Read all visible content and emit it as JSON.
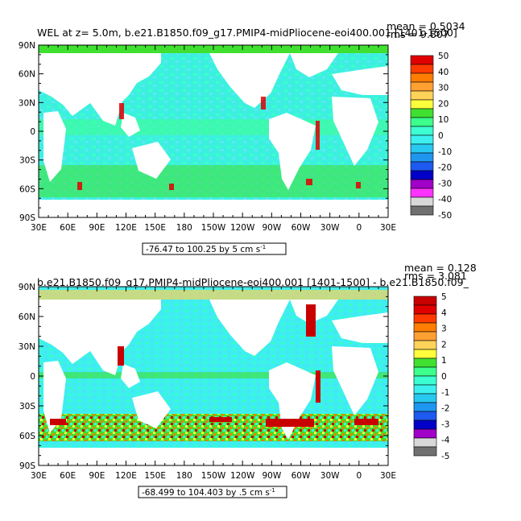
{
  "chart_data": [
    {
      "type": "heatmap",
      "title": "WEL at z=    5.0m, b.e21.B1850.f09_g17.PMIP4-midPliocene-eoi400.001 [1401-1500]",
      "stats": [
        "mean = 0.5034",
        "rms = 9.807"
      ],
      "x_ticks": [
        "30E",
        "60E",
        "90E",
        "120E",
        "150E",
        "180",
        "150W",
        "120W",
        "90W",
        "60W",
        "30W",
        "0",
        "30E"
      ],
      "y_ticks": [
        "90N",
        "60N",
        "30N",
        "0",
        "30S",
        "60S",
        "90S"
      ],
      "contour_info": [
        "-76.47 to 100.25 by 5 cm s",
        "-1"
      ],
      "colorbar_levels": [
        "50",
        "40",
        "30",
        "20",
        "10",
        "0",
        "-10",
        "-20",
        "-30",
        "-40",
        "-50"
      ],
      "colorbar_colors": [
        "#e10000",
        "#ff3a00",
        "#ff7d00",
        "#ffa032",
        "#ffd25a",
        "#fdfd3c",
        "#40e030",
        "#3cff8c",
        "#3cffd2",
        "#3cf0f0",
        "#28c8f0",
        "#1e96f0",
        "#1e5af0",
        "#0000c8",
        "#a000c8",
        "#ff32ff",
        "#d8d8d8",
        "#707070"
      ],
      "xlim": [
        "30E",
        "30E"
      ],
      "ylim": [
        "90S",
        "90N"
      ]
    },
    {
      "type": "heatmap",
      "title": "b.e21.B1850.f09_g17.PMIP4-midPliocene-eoi400.001 [1401-1500] - b.e21.B1850.f09_",
      "stats": [
        "mean = 0.128",
        "rms = 3.081"
      ],
      "x_ticks": [
        "30E",
        "60E",
        "90E",
        "120E",
        "150E",
        "180",
        "150W",
        "120W",
        "90W",
        "60W",
        "30W",
        "0",
        "30E"
      ],
      "y_ticks": [
        "90N",
        "60N",
        "30N",
        "0",
        "30S",
        "60S",
        "90S"
      ],
      "contour_info": [
        "-68.499 to 104.403 by .5 cm s",
        "-1"
      ],
      "colorbar_levels": [
        "5",
        "4",
        "3",
        "2",
        "1",
        "0",
        "-1",
        "-2",
        "-3",
        "-4",
        "-5"
      ],
      "colorbar_colors": [
        "#c80000",
        "#e10000",
        "#ff3a00",
        "#ff7d00",
        "#ffa032",
        "#ffd25a",
        "#fdfd3c",
        "#40e030",
        "#3cff8c",
        "#3cffd2",
        "#3cf0f0",
        "#28c8f0",
        "#1e96f0",
        "#1e5af0",
        "#0000c8",
        "#a000c8",
        "#d8d8d8",
        "#707070"
      ],
      "xlim": [
        "30E",
        "30E"
      ],
      "ylim": [
        "90S",
        "90N"
      ]
    }
  ]
}
